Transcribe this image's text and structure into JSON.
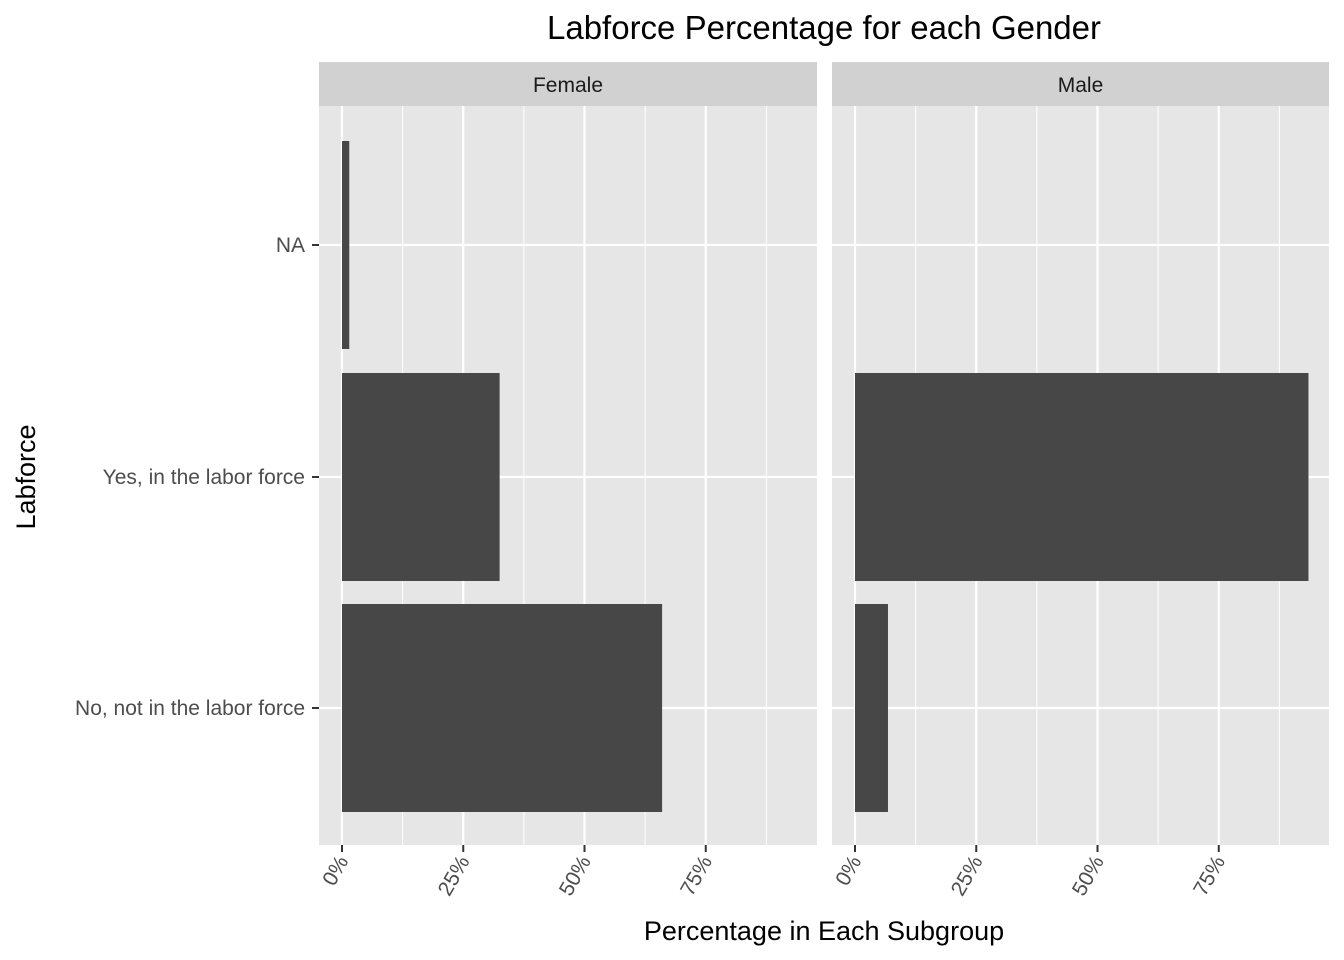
{
  "chart_data": {
    "type": "bar",
    "orientation": "horizontal",
    "title": "Labforce Percentage for each Gender",
    "xlabel": "Percentage in Each Subgroup",
    "ylabel": "Labforce",
    "categories": [
      "NA",
      "Yes, in the labor force",
      "No, not in the labor force"
    ],
    "x_ticks": [
      "0%",
      "25%",
      "50%",
      "75%"
    ],
    "xlim": [
      0,
      0.975
    ],
    "grid": true,
    "panels": [
      {
        "name": "Female",
        "values": [
          0.015,
          0.325,
          0.66
        ]
      },
      {
        "name": "Male",
        "values": [
          0.0,
          0.935,
          0.068
        ]
      }
    ],
    "colors": {
      "bar": "#474747",
      "panel_bg": "#e6e6e6",
      "strip_bg": "#d1d1d1",
      "grid": "#ffffff"
    }
  }
}
